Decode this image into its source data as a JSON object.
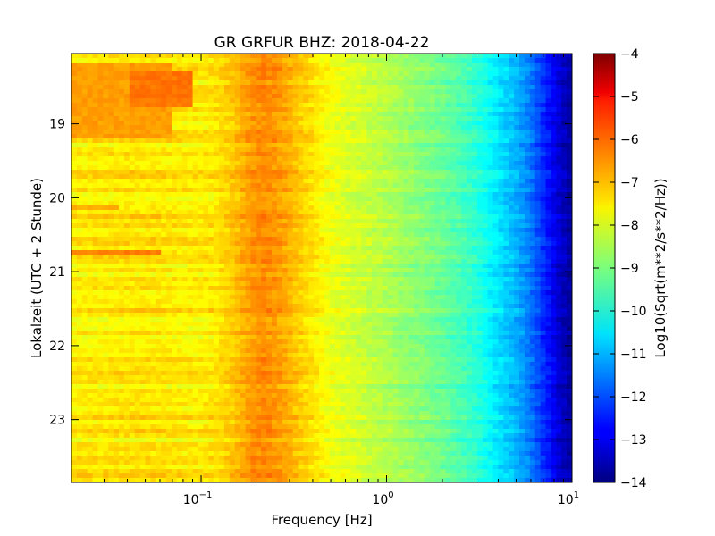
{
  "chart_data": {
    "type": "heatmap",
    "title": "GR GRFUR BHZ: 2018-04-22",
    "xlabel": "Frequency [Hz]",
    "ylabel": "Lokalzeit (UTC + 2 Stunde)",
    "x_scale": "log",
    "xlim": [
      0.02,
      10
    ],
    "x_ticks": [
      {
        "value": 0.1,
        "base": "10",
        "exp": "−1"
      },
      {
        "value": 1,
        "base": "10",
        "exp": "0"
      },
      {
        "value": 10,
        "base": "10",
        "exp": "1"
      }
    ],
    "ylim": [
      18.05,
      23.85
    ],
    "y_ticks": [
      {
        "value": 19,
        "label": "19"
      },
      {
        "value": 20,
        "label": "20"
      },
      {
        "value": 21,
        "label": "21"
      },
      {
        "value": 22,
        "label": "22"
      },
      {
        "value": 23,
        "label": "23"
      }
    ],
    "colorbar": {
      "label": "Log10(Sqrt(m**2/s**2/Hz))",
      "colormap": "jet",
      "range": [
        -14,
        -4
      ],
      "ticks": [
        {
          "value": -4,
          "label": "−4"
        },
        {
          "value": -5,
          "label": "−5"
        },
        {
          "value": -6,
          "label": "−6"
        },
        {
          "value": -7,
          "label": "−7"
        },
        {
          "value": -8,
          "label": "−8"
        },
        {
          "value": -9,
          "label": "−9"
        },
        {
          "value": -10,
          "label": "−10"
        },
        {
          "value": -11,
          "label": "−11"
        },
        {
          "value": -12,
          "label": "−12"
        },
        {
          "value": -13,
          "label": "−13"
        },
        {
          "value": -14,
          "label": "−14"
        }
      ]
    },
    "spectrum_profile": {
      "frequency_hz": [
        0.02,
        0.04,
        0.06,
        0.08,
        0.1,
        0.12,
        0.15,
        0.19,
        0.22,
        0.27,
        0.33,
        0.4,
        0.5,
        0.7,
        1.0,
        1.5,
        2.0,
        3.0,
        4.0,
        5.0,
        6.0,
        7.0,
        8.0,
        9.0,
        10.0
      ],
      "level_log10": [
        -7.6,
        -7.5,
        -7.5,
        -7.6,
        -7.6,
        -7.5,
        -7.2,
        -6.7,
        -6.6,
        -6.8,
        -7.2,
        -7.5,
        -7.9,
        -8.2,
        -8.5,
        -8.9,
        -9.2,
        -9.8,
        -10.5,
        -11.0,
        -11.6,
        -12.3,
        -12.9,
        -13.4,
        -13.7
      ]
    },
    "features": [
      {
        "time_from": 18.2,
        "time_to": 19.2,
        "freq_from": 0.02,
        "freq_to": 0.07,
        "level_log10": -6.8
      },
      {
        "time_from": 18.3,
        "time_to": 18.8,
        "freq_from": 0.04,
        "freq_to": 0.09,
        "level_log10": -6.4
      },
      {
        "time_from": 20.7,
        "time_to": 20.78,
        "freq_from": 0.02,
        "freq_to": 0.06,
        "level_log10": -6.5
      },
      {
        "time_from": 20.1,
        "time_to": 20.17,
        "freq_from": 0.02,
        "freq_to": 0.035,
        "level_log10": -6.9
      }
    ]
  }
}
